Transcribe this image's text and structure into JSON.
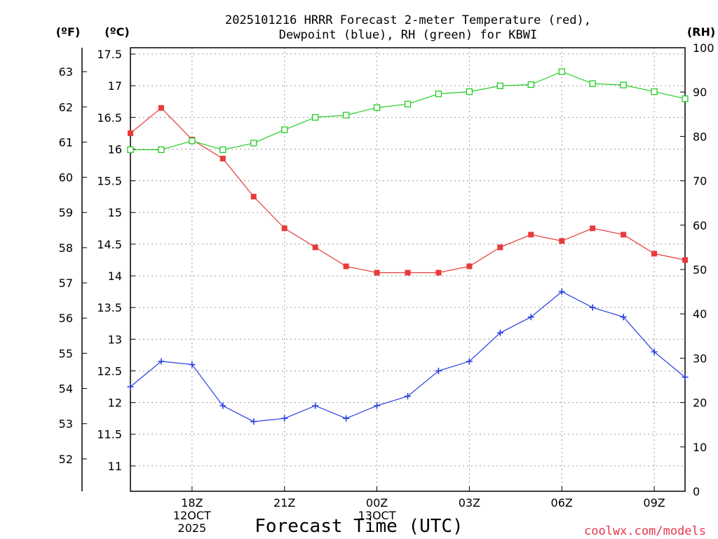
{
  "title": {
    "line1": "2025101216 HRRR Forecast 2-meter Temperature (red),",
    "line2": "Dewpoint (blue), RH (green) for KBWI"
  },
  "units": {
    "f": "(ºF)",
    "c": "(ºC)",
    "rh": "(RH)"
  },
  "credit": "coolwx.com/models",
  "colors": {
    "temperature": "#e83a3a",
    "dewpoint": "#2a3fe0",
    "rh": "#22cc22"
  },
  "chart_data": {
    "type": "line",
    "title": "2025101216 HRRR Forecast 2-meter Temperature (red), Dewpoint (blue), RH (green) for KBWI",
    "xlabel": "Forecast Time (UTC)",
    "x_hours": [
      16,
      17,
      18,
      19,
      20,
      21,
      22,
      23,
      24,
      25,
      26,
      27,
      28,
      29,
      30,
      31,
      32,
      33,
      34
    ],
    "xlim": [
      16,
      34
    ],
    "x_ticks": [
      {
        "hour": 18,
        "lines": [
          "18Z",
          "12OCT",
          "2025"
        ]
      },
      {
        "hour": 21,
        "lines": [
          "21Z"
        ]
      },
      {
        "hour": 24,
        "lines": [
          "00Z",
          "13OCT"
        ]
      },
      {
        "hour": 27,
        "lines": [
          "03Z"
        ]
      },
      {
        "hour": 30,
        "lines": [
          "06Z"
        ]
      },
      {
        "hour": 33,
        "lines": [
          "09Z"
        ]
      }
    ],
    "ylim_c": [
      10.6,
      17.6
    ],
    "y_ticks_c": [
      "11",
      "11.5",
      "12",
      "12.5",
      "13",
      "13.5",
      "14",
      "14.5",
      "15",
      "15.5",
      "16",
      "16.5",
      "17",
      "17.5"
    ],
    "y_ticks_f": [
      "52",
      "53",
      "54",
      "55",
      "56",
      "57",
      "58",
      "59",
      "60",
      "61",
      "62",
      "63"
    ],
    "ylim_rh": [
      0,
      100
    ],
    "y_ticks_rh": [
      "0",
      "10",
      "20",
      "30",
      "40",
      "50",
      "60",
      "70",
      "80",
      "90",
      "100"
    ],
    "series": [
      {
        "name": "Temperature (red)",
        "unit": "C",
        "marker": "filled-square",
        "values": [
          16.25,
          16.65,
          16.15,
          15.85,
          15.25,
          14.75,
          14.45,
          14.15,
          14.05,
          14.05,
          14.05,
          14.15,
          14.45,
          14.65,
          14.55,
          14.75,
          14.65,
          14.35,
          14.25
        ]
      },
      {
        "name": "Dewpoint (blue)",
        "unit": "C",
        "marker": "plus",
        "values": [
          12.25,
          12.65,
          12.6,
          11.95,
          11.7,
          11.75,
          11.95,
          11.75,
          11.95,
          12.1,
          12.5,
          12.65,
          13.1,
          13.35,
          13.75,
          13.5,
          13.35,
          12.8,
          12.4
        ]
      },
      {
        "name": "RH (green)",
        "unit": "%",
        "marker": "open-square",
        "values": [
          77,
          77,
          79,
          77,
          78.5,
          81.5,
          84.3,
          84.8,
          86.5,
          87.3,
          89.6,
          90.1,
          91.4,
          91.7,
          94.6,
          91.9,
          91.6,
          90.1,
          88.5
        ]
      }
    ]
  }
}
